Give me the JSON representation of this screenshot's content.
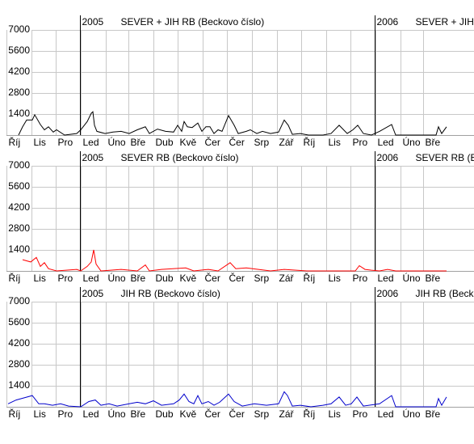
{
  "chart_data": [
    {
      "type": "line",
      "title": "SEVER + JIH   RB  (Beckovo číslo)",
      "color": "#000000",
      "year_labels": [
        {
          "value": 92,
          "label": "2005"
        },
        {
          "value": 457,
          "label": "2006"
        }
      ],
      "xlim": [
        0,
        579
      ],
      "ylim": [
        0,
        7000
      ],
      "yticks": [
        1400,
        2800,
        4200,
        5600,
        7000
      ],
      "grid": true,
      "xticks": [
        {
          "value": 0,
          "label": "Říj"
        },
        {
          "value": 31,
          "label": "Lis"
        },
        {
          "value": 61,
          "label": "Pro"
        },
        {
          "value": 92,
          "label": "Led"
        },
        {
          "value": 123,
          "label": "Úno"
        },
        {
          "value": 151,
          "label": "Bře"
        },
        {
          "value": 182,
          "label": "Dub"
        },
        {
          "value": 212,
          "label": "Kvě"
        },
        {
          "value": 243,
          "label": "Čer"
        },
        {
          "value": 273,
          "label": "Čer"
        },
        {
          "value": 304,
          "label": "Srp"
        },
        {
          "value": 335,
          "label": "Zář"
        },
        {
          "value": 365,
          "label": "Říj"
        },
        {
          "value": 396,
          "label": "Lis"
        },
        {
          "value": 426,
          "label": "Pro"
        },
        {
          "value": 457,
          "label": "Led"
        },
        {
          "value": 488,
          "label": "Úno"
        },
        {
          "value": 516,
          "label": "Bře"
        }
      ],
      "x": [
        15,
        20,
        25,
        32,
        35,
        42,
        47,
        52,
        58,
        62,
        72,
        87,
        92,
        100,
        105,
        107,
        109,
        112,
        122,
        132,
        142,
        152,
        162,
        172,
        177,
        187,
        197,
        207,
        212,
        217,
        220,
        224,
        230,
        237,
        242,
        247,
        252,
        257,
        262,
        267,
        275,
        282,
        287,
        297,
        302,
        310,
        317,
        327,
        337,
        344,
        349,
        354,
        364,
        374,
        392,
        402,
        412,
        422,
        429,
        435,
        442,
        452,
        462,
        477,
        482,
        532,
        535,
        539,
        545
      ],
      "values": [
        0,
        550,
        1000,
        1000,
        1350,
        700,
        350,
        550,
        200,
        350,
        0,
        100,
        350,
        900,
        1450,
        1550,
        650,
        250,
        100,
        200,
        250,
        100,
        350,
        550,
        100,
        400,
        250,
        200,
        650,
        250,
        900,
        550,
        500,
        800,
        250,
        550,
        550,
        100,
        350,
        250,
        1300,
        650,
        100,
        250,
        350,
        100,
        250,
        100,
        200,
        1000,
        650,
        50,
        100,
        0,
        0,
        100,
        650,
        100,
        350,
        650,
        100,
        0,
        250,
        700,
        0,
        0,
        550,
        100,
        550
      ]
    },
    {
      "type": "line",
      "title": "SEVER   RB  (Beckovo číslo)",
      "color": "#ff0000",
      "year_labels": [
        {
          "value": 92,
          "label": "2005"
        },
        {
          "value": 457,
          "label": "2006"
        }
      ],
      "xlim": [
        0,
        579
      ],
      "ylim": [
        0,
        7000
      ],
      "yticks": [
        1400,
        2800,
        4200,
        5600,
        7000
      ],
      "grid": true,
      "xticks": [
        {
          "value": 0,
          "label": "Říj"
        },
        {
          "value": 31,
          "label": "Lis"
        },
        {
          "value": 61,
          "label": "Pro"
        },
        {
          "value": 92,
          "label": "Led"
        },
        {
          "value": 123,
          "label": "Úno"
        },
        {
          "value": 151,
          "label": "Bře"
        },
        {
          "value": 182,
          "label": "Dub"
        },
        {
          "value": 212,
          "label": "Kvě"
        },
        {
          "value": 243,
          "label": "Čer"
        },
        {
          "value": 273,
          "label": "Čer"
        },
        {
          "value": 304,
          "label": "Srp"
        },
        {
          "value": 335,
          "label": "Zář"
        },
        {
          "value": 365,
          "label": "Říj"
        },
        {
          "value": 396,
          "label": "Lis"
        },
        {
          "value": 426,
          "label": "Pro"
        },
        {
          "value": 457,
          "label": "Led"
        },
        {
          "value": 488,
          "label": "Úno"
        },
        {
          "value": 516,
          "label": "Bře"
        }
      ],
      "x": [
        20,
        30,
        37,
        42,
        47,
        52,
        62,
        87,
        92,
        100,
        105,
        108,
        111,
        117,
        142,
        162,
        172,
        177,
        192,
        222,
        232,
        250,
        262,
        277,
        284,
        297,
        312,
        327,
        344,
        372,
        432,
        437,
        444,
        452,
        462,
        472,
        482,
        545
      ],
      "values": [
        750,
        600,
        900,
        300,
        550,
        150,
        0,
        100,
        0,
        300,
        600,
        1400,
        450,
        0,
        100,
        0,
        400,
        0,
        100,
        200,
        0,
        100,
        0,
        550,
        150,
        200,
        100,
        0,
        100,
        0,
        0,
        350,
        100,
        50,
        0,
        100,
        0,
        0
      ]
    },
    {
      "type": "line",
      "title": "JIH   RB  (Beckovo číslo)",
      "color": "#0000cc",
      "year_labels": [
        {
          "value": 92,
          "label": "2005"
        },
        {
          "value": 457,
          "label": "2006"
        }
      ],
      "xlim": [
        0,
        579
      ],
      "ylim": [
        0,
        7000
      ],
      "yticks": [
        1400,
        2800,
        4200,
        5600,
        7000
      ],
      "grid": true,
      "xticks": [
        {
          "value": 0,
          "label": "Říj"
        },
        {
          "value": 31,
          "label": "Lis"
        },
        {
          "value": 61,
          "label": "Pro"
        },
        {
          "value": 92,
          "label": "Led"
        },
        {
          "value": 123,
          "label": "Úno"
        },
        {
          "value": 151,
          "label": "Bře"
        },
        {
          "value": 182,
          "label": "Dub"
        },
        {
          "value": 212,
          "label": "Kvě"
        },
        {
          "value": 243,
          "label": "Čer"
        },
        {
          "value": 273,
          "label": "Čer"
        },
        {
          "value": 304,
          "label": "Srp"
        },
        {
          "value": 335,
          "label": "Zář"
        },
        {
          "value": 365,
          "label": "Říj"
        },
        {
          "value": 396,
          "label": "Lis"
        },
        {
          "value": 426,
          "label": "Pro"
        },
        {
          "value": 457,
          "label": "Led"
        },
        {
          "value": 488,
          "label": "Úno"
        },
        {
          "value": 516,
          "label": "Bře"
        }
      ],
      "x": [
        2,
        12,
        22,
        32,
        40,
        47,
        57,
        67,
        77,
        92,
        102,
        110,
        117,
        127,
        137,
        152,
        162,
        172,
        182,
        192,
        207,
        214,
        220,
        226,
        232,
        237,
        242,
        250,
        257,
        264,
        275,
        282,
        292,
        307,
        322,
        337,
        344,
        348,
        354,
        364,
        377,
        392,
        402,
        412,
        420,
        427,
        434,
        442,
        462,
        477,
        482,
        532,
        535,
        539,
        545
      ],
      "values": [
        200,
        450,
        600,
        750,
        200,
        200,
        100,
        200,
        50,
        0,
        350,
        450,
        100,
        200,
        50,
        200,
        300,
        200,
        400,
        100,
        200,
        450,
        850,
        350,
        200,
        750,
        200,
        350,
        100,
        300,
        850,
        350,
        50,
        200,
        100,
        200,
        1000,
        750,
        50,
        100,
        0,
        100,
        200,
        650,
        100,
        200,
        650,
        50,
        200,
        750,
        0,
        0,
        550,
        100,
        650
      ]
    }
  ]
}
